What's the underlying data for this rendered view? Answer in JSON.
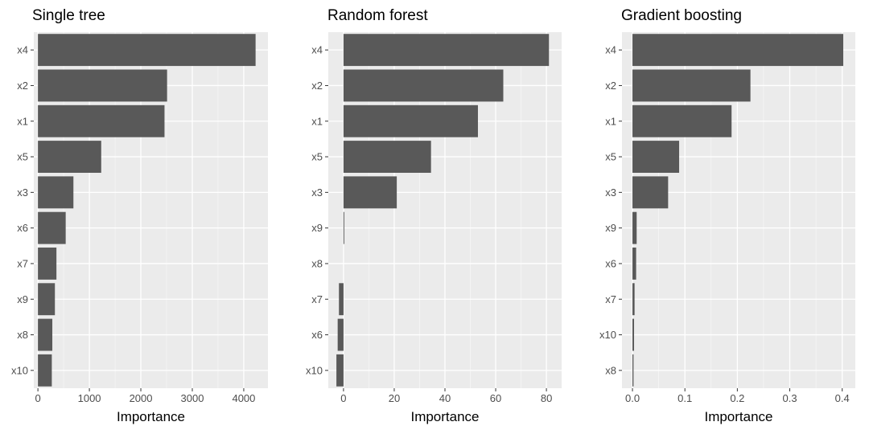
{
  "style": {
    "panel_background": "#ebebeb",
    "grid_major": "#ffffff",
    "bar_fill": "#595959",
    "tick_color": "#333333"
  },
  "chart_data": [
    {
      "type": "bar",
      "orientation": "horizontal",
      "title": "Single tree",
      "xlabel": "Importance",
      "ylabel": "",
      "categories": [
        "x4",
        "x2",
        "x1",
        "x5",
        "x3",
        "x6",
        "x7",
        "x9",
        "x8",
        "x10"
      ],
      "values": [
        4230,
        2510,
        2460,
        1230,
        690,
        540,
        360,
        330,
        280,
        270
      ],
      "xlim": [
        -80,
        4470
      ],
      "xticks": [
        0,
        1000,
        2000,
        3000,
        4000
      ],
      "xtick_labels": [
        "0",
        "1000",
        "2000",
        "3000",
        "4000"
      ],
      "grid": true
    },
    {
      "type": "bar",
      "orientation": "horizontal",
      "title": "Random forest",
      "xlabel": "Importance",
      "ylabel": "",
      "categories": [
        "x4",
        "x2",
        "x1",
        "x5",
        "x3",
        "x9",
        "x8",
        "x7",
        "x6",
        "x10"
      ],
      "values": [
        81,
        63,
        53,
        34.5,
        21,
        0.3,
        0,
        -1.8,
        -2.3,
        -2.8
      ],
      "xlim": [
        -6,
        86
      ],
      "xticks": [
        0,
        20,
        40,
        60,
        80
      ],
      "xtick_labels": [
        "0",
        "20",
        "40",
        "60",
        "80"
      ],
      "grid": true
    },
    {
      "type": "bar",
      "orientation": "horizontal",
      "title": "Gradient boosting",
      "xlabel": "Importance",
      "ylabel": "",
      "categories": [
        "x4",
        "x2",
        "x1",
        "x5",
        "x3",
        "x9",
        "x6",
        "x7",
        "x10",
        "x8"
      ],
      "values": [
        0.402,
        0.225,
        0.189,
        0.089,
        0.068,
        0.008,
        0.007,
        0.004,
        0.003,
        0.002
      ],
      "xlim": [
        -0.02,
        0.425
      ],
      "xticks": [
        0,
        0.1,
        0.2,
        0.3,
        0.4
      ],
      "xtick_labels": [
        "0.0",
        "0.1",
        "0.2",
        "0.3",
        "0.4"
      ],
      "grid": true
    }
  ]
}
